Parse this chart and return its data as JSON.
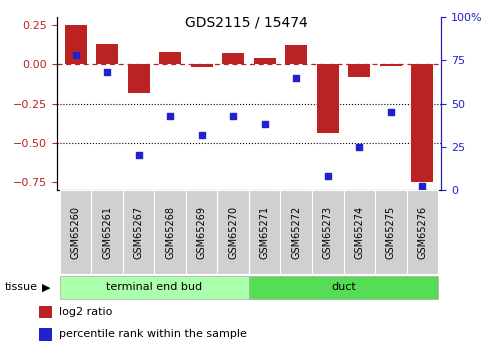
{
  "title": "GDS2115 / 15474",
  "categories": [
    "GSM65260",
    "GSM65261",
    "GSM65267",
    "GSM65268",
    "GSM65269",
    "GSM65270",
    "GSM65271",
    "GSM65272",
    "GSM65273",
    "GSM65274",
    "GSM65275",
    "GSM65276"
  ],
  "log2_ratio": [
    0.25,
    0.13,
    -0.18,
    0.08,
    -0.02,
    0.07,
    0.04,
    0.12,
    -0.44,
    -0.08,
    -0.01,
    -0.75
  ],
  "percentile_rank": [
    78,
    68,
    20,
    43,
    32,
    43,
    38,
    65,
    8,
    25,
    45,
    2
  ],
  "bar_color": "#bb2222",
  "dot_color": "#2222cc",
  "ylim_left": [
    -0.8,
    0.3
  ],
  "ylim_right": [
    0,
    100
  ],
  "yticks_left": [
    0.25,
    0.0,
    -0.25,
    -0.5,
    -0.75
  ],
  "yticks_right": [
    100,
    75,
    50,
    25,
    0
  ],
  "hline_y": 0.0,
  "dotted_lines": [
    -0.25,
    -0.5
  ],
  "group1_label": "terminal end bud",
  "group1_count": 6,
  "group2_label": "duct",
  "group2_count": 6,
  "group1_color": "#aaffaa",
  "group2_color": "#55dd55",
  "tissue_label": "tissue",
  "legend_items": [
    {
      "label": "log2 ratio",
      "color": "#bb2222"
    },
    {
      "label": "percentile rank within the sample",
      "color": "#2222cc"
    }
  ],
  "bar_width": 0.7,
  "xticklabel_fontsize": 7,
  "figsize": [
    4.93,
    3.45
  ],
  "dpi": 100
}
